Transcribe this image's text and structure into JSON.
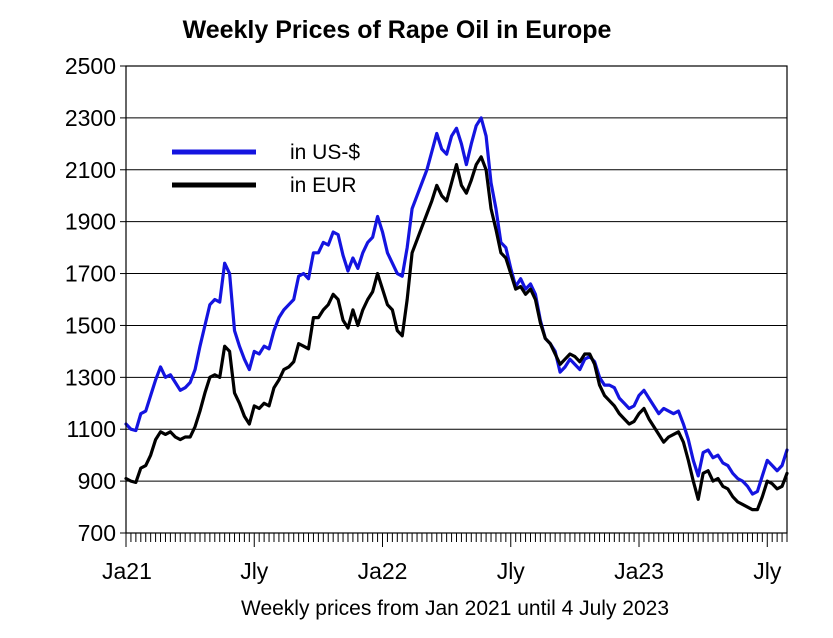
{
  "chart_data": {
    "type": "line",
    "title": "Weekly Prices of Rape Oil in Europe",
    "xlabel": "Weekly prices from Jan 2021 until 4 July 2023",
    "ylabel": "",
    "ylim": [
      700,
      2500
    ],
    "y_ticks": [
      700,
      900,
      1100,
      1300,
      1500,
      1700,
      1900,
      2100,
      2300,
      2500
    ],
    "x_ticks": [
      {
        "label": "Ja21",
        "week": 0
      },
      {
        "label": "Jly",
        "week": 26
      },
      {
        "label": "Ja22",
        "week": 52
      },
      {
        "label": "Jly",
        "week": 78
      },
      {
        "label": "Ja23",
        "week": 104
      },
      {
        "label": "Jly",
        "week": 130
      }
    ],
    "grid": true,
    "legend": "top-left",
    "series": [
      {
        "name": "in US-$",
        "color": "#1414e0",
        "points": [
          [
            0,
            1120
          ],
          [
            1,
            1100
          ],
          [
            2,
            1095
          ],
          [
            3,
            1160
          ],
          [
            4,
            1170
          ],
          [
            5,
            1230
          ],
          [
            6,
            1290
          ],
          [
            7,
            1340
          ],
          [
            8,
            1300
          ],
          [
            9,
            1310
          ],
          [
            10,
            1280
          ],
          [
            11,
            1250
          ],
          [
            12,
            1260
          ],
          [
            13,
            1280
          ],
          [
            14,
            1330
          ],
          [
            15,
            1420
          ],
          [
            16,
            1500
          ],
          [
            17,
            1580
          ],
          [
            18,
            1600
          ],
          [
            19,
            1590
          ],
          [
            20,
            1740
          ],
          [
            21,
            1700
          ],
          [
            22,
            1480
          ],
          [
            23,
            1420
          ],
          [
            24,
            1370
          ],
          [
            25,
            1330
          ],
          [
            26,
            1400
          ],
          [
            27,
            1390
          ],
          [
            28,
            1420
          ],
          [
            29,
            1410
          ],
          [
            30,
            1480
          ],
          [
            31,
            1530
          ],
          [
            32,
            1560
          ],
          [
            33,
            1580
          ],
          [
            34,
            1600
          ],
          [
            35,
            1690
          ],
          [
            36,
            1700
          ],
          [
            37,
            1680
          ],
          [
            38,
            1780
          ],
          [
            39,
            1780
          ],
          [
            40,
            1820
          ],
          [
            41,
            1810
          ],
          [
            42,
            1860
          ],
          [
            43,
            1850
          ],
          [
            44,
            1770
          ],
          [
            45,
            1710
          ],
          [
            46,
            1760
          ],
          [
            47,
            1720
          ],
          [
            48,
            1780
          ],
          [
            49,
            1820
          ],
          [
            50,
            1840
          ],
          [
            51,
            1920
          ],
          [
            52,
            1860
          ],
          [
            53,
            1780
          ],
          [
            54,
            1740
          ],
          [
            55,
            1700
          ],
          [
            56,
            1690
          ],
          [
            57,
            1800
          ],
          [
            58,
            1950
          ],
          [
            59,
            2000
          ],
          [
            60,
            2050
          ],
          [
            61,
            2100
          ],
          [
            62,
            2170
          ],
          [
            63,
            2240
          ],
          [
            64,
            2180
          ],
          [
            65,
            2160
          ],
          [
            66,
            2230
          ],
          [
            67,
            2260
          ],
          [
            68,
            2200
          ],
          [
            69,
            2120
          ],
          [
            70,
            2200
          ],
          [
            71,
            2270
          ],
          [
            72,
            2300
          ],
          [
            73,
            2230
          ],
          [
            74,
            2050
          ],
          [
            75,
            1950
          ],
          [
            76,
            1820
          ],
          [
            77,
            1800
          ],
          [
            78,
            1720
          ],
          [
            79,
            1650
          ],
          [
            80,
            1680
          ],
          [
            81,
            1640
          ],
          [
            82,
            1660
          ],
          [
            83,
            1620
          ],
          [
            84,
            1520
          ],
          [
            85,
            1450
          ],
          [
            86,
            1430
          ],
          [
            87,
            1400
          ],
          [
            88,
            1320
          ],
          [
            89,
            1340
          ],
          [
            90,
            1370
          ],
          [
            91,
            1350
          ],
          [
            92,
            1330
          ],
          [
            93,
            1370
          ],
          [
            94,
            1380
          ],
          [
            95,
            1360
          ],
          [
            96,
            1300
          ],
          [
            97,
            1270
          ],
          [
            98,
            1270
          ],
          [
            99,
            1260
          ],
          [
            100,
            1220
          ],
          [
            101,
            1200
          ],
          [
            102,
            1180
          ],
          [
            103,
            1190
          ],
          [
            104,
            1230
          ],
          [
            105,
            1250
          ],
          [
            106,
            1220
          ],
          [
            107,
            1190
          ],
          [
            108,
            1160
          ],
          [
            109,
            1180
          ],
          [
            110,
            1170
          ],
          [
            111,
            1160
          ],
          [
            112,
            1170
          ],
          [
            113,
            1120
          ],
          [
            114,
            1060
          ],
          [
            115,
            980
          ],
          [
            116,
            920
          ],
          [
            117,
            1010
          ],
          [
            118,
            1020
          ],
          [
            119,
            990
          ],
          [
            120,
            1000
          ],
          [
            121,
            970
          ],
          [
            122,
            960
          ],
          [
            123,
            930
          ],
          [
            124,
            910
          ],
          [
            125,
            900
          ],
          [
            126,
            880
          ],
          [
            127,
            850
          ],
          [
            128,
            860
          ],
          [
            129,
            920
          ],
          [
            130,
            980
          ],
          [
            131,
            960
          ],
          [
            132,
            940
          ],
          [
            133,
            960
          ],
          [
            134,
            1020
          ]
        ]
      },
      {
        "name": "in EUR",
        "color": "#000000",
        "points": [
          [
            0,
            910
          ],
          [
            1,
            900
          ],
          [
            2,
            895
          ],
          [
            3,
            950
          ],
          [
            4,
            960
          ],
          [
            5,
            1000
          ],
          [
            6,
            1060
          ],
          [
            7,
            1090
          ],
          [
            8,
            1080
          ],
          [
            9,
            1090
          ],
          [
            10,
            1070
          ],
          [
            11,
            1060
          ],
          [
            12,
            1070
          ],
          [
            13,
            1070
          ],
          [
            14,
            1110
          ],
          [
            15,
            1170
          ],
          [
            16,
            1240
          ],
          [
            17,
            1300
          ],
          [
            18,
            1310
          ],
          [
            19,
            1300
          ],
          [
            20,
            1420
          ],
          [
            21,
            1400
          ],
          [
            22,
            1240
          ],
          [
            23,
            1200
          ],
          [
            24,
            1150
          ],
          [
            25,
            1120
          ],
          [
            26,
            1190
          ],
          [
            27,
            1180
          ],
          [
            28,
            1200
          ],
          [
            29,
            1190
          ],
          [
            30,
            1260
          ],
          [
            31,
            1290
          ],
          [
            32,
            1330
          ],
          [
            33,
            1340
          ],
          [
            34,
            1360
          ],
          [
            35,
            1430
          ],
          [
            36,
            1420
          ],
          [
            37,
            1410
          ],
          [
            38,
            1530
          ],
          [
            39,
            1530
          ],
          [
            40,
            1560
          ],
          [
            41,
            1580
          ],
          [
            42,
            1620
          ],
          [
            43,
            1600
          ],
          [
            44,
            1520
          ],
          [
            45,
            1490
          ],
          [
            46,
            1560
          ],
          [
            47,
            1500
          ],
          [
            48,
            1560
          ],
          [
            49,
            1600
          ],
          [
            50,
            1630
          ],
          [
            51,
            1700
          ],
          [
            52,
            1640
          ],
          [
            53,
            1580
          ],
          [
            54,
            1560
          ],
          [
            55,
            1480
          ],
          [
            56,
            1460
          ],
          [
            57,
            1600
          ],
          [
            58,
            1780
          ],
          [
            59,
            1830
          ],
          [
            60,
            1880
          ],
          [
            61,
            1930
          ],
          [
            62,
            1980
          ],
          [
            63,
            2040
          ],
          [
            64,
            2000
          ],
          [
            65,
            1980
          ],
          [
            66,
            2050
          ],
          [
            67,
            2120
          ],
          [
            68,
            2040
          ],
          [
            69,
            2010
          ],
          [
            70,
            2060
          ],
          [
            71,
            2120
          ],
          [
            72,
            2150
          ],
          [
            73,
            2100
          ],
          [
            74,
            1950
          ],
          [
            75,
            1870
          ],
          [
            76,
            1780
          ],
          [
            77,
            1760
          ],
          [
            78,
            1700
          ],
          [
            79,
            1640
          ],
          [
            80,
            1650
          ],
          [
            81,
            1620
          ],
          [
            82,
            1640
          ],
          [
            83,
            1600
          ],
          [
            84,
            1510
          ],
          [
            85,
            1450
          ],
          [
            86,
            1430
          ],
          [
            87,
            1390
          ],
          [
            88,
            1350
          ],
          [
            89,
            1370
          ],
          [
            90,
            1390
          ],
          [
            91,
            1380
          ],
          [
            92,
            1360
          ],
          [
            93,
            1390
          ],
          [
            94,
            1390
          ],
          [
            95,
            1350
          ],
          [
            96,
            1270
          ],
          [
            97,
            1230
          ],
          [
            98,
            1210
          ],
          [
            99,
            1190
          ],
          [
            100,
            1160
          ],
          [
            101,
            1140
          ],
          [
            102,
            1120
          ],
          [
            103,
            1130
          ],
          [
            104,
            1160
          ],
          [
            105,
            1180
          ],
          [
            106,
            1140
          ],
          [
            107,
            1110
          ],
          [
            108,
            1080
          ],
          [
            109,
            1050
          ],
          [
            110,
            1070
          ],
          [
            111,
            1080
          ],
          [
            112,
            1090
          ],
          [
            113,
            1050
          ],
          [
            114,
            980
          ],
          [
            115,
            900
          ],
          [
            116,
            830
          ],
          [
            117,
            930
          ],
          [
            118,
            940
          ],
          [
            119,
            900
          ],
          [
            120,
            910
          ],
          [
            121,
            880
          ],
          [
            122,
            870
          ],
          [
            123,
            840
          ],
          [
            124,
            820
          ],
          [
            125,
            810
          ],
          [
            126,
            800
          ],
          [
            127,
            790
          ],
          [
            128,
            790
          ],
          [
            129,
            840
          ],
          [
            130,
            900
          ],
          [
            131,
            890
          ],
          [
            132,
            870
          ],
          [
            133,
            880
          ],
          [
            134,
            930
          ]
        ]
      }
    ]
  }
}
